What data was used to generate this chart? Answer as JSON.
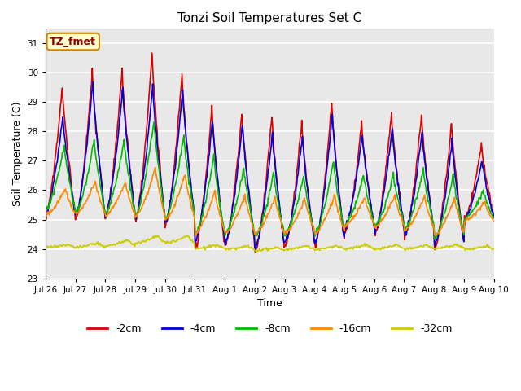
{
  "title": "Tonzi Soil Temperatures Set C",
  "xlabel": "Time",
  "ylabel": "Soil Temperature (C)",
  "ylim": [
    23.0,
    31.5
  ],
  "yticks": [
    23.0,
    24.0,
    25.0,
    26.0,
    27.0,
    28.0,
    29.0,
    30.0,
    31.0
  ],
  "xtick_labels": [
    "Jul 26",
    "Jul 27",
    "Jul 28",
    "Jul 29",
    "Jul 30",
    "Jul 31",
    "Aug 1",
    "Aug 2",
    "Aug 3",
    "Aug 4",
    "Aug 5",
    "Aug 6",
    "Aug 7",
    "Aug 8",
    "Aug 9",
    "Aug 10"
  ],
  "legend_label": "TZ_fmet",
  "series": {
    "-2cm": {
      "color": "#dd0000",
      "lw": 1.2
    },
    "-4cm": {
      "color": "#0000dd",
      "lw": 1.2
    },
    "-8cm": {
      "color": "#00bb00",
      "lw": 1.2
    },
    "-16cm": {
      "color": "#ff8800",
      "lw": 1.2
    },
    "-32cm": {
      "color": "#cccc00",
      "lw": 1.2
    }
  },
  "fig_bg_color": "#ffffff",
  "plot_bg_color": "#e8e8e8",
  "grid_color": "#ffffff"
}
